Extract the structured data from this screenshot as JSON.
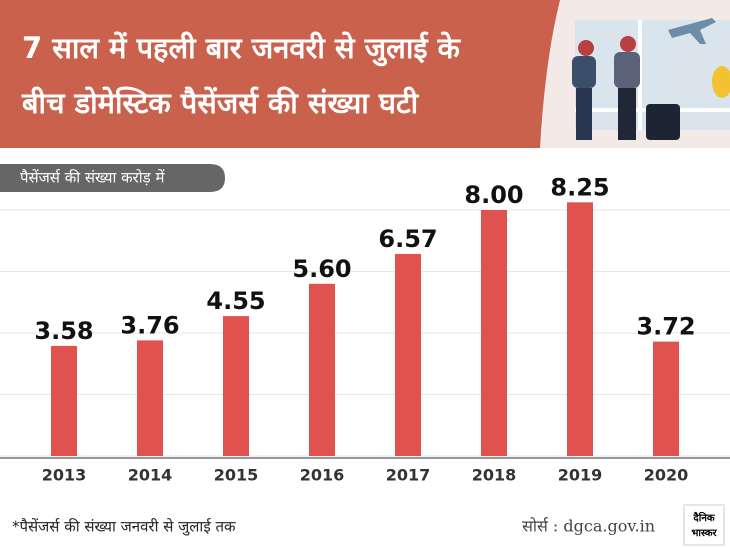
{
  "header": {
    "title_lines": [
      "7 साल में पहली बार जनवरी से जुलाई के",
      "बीच डोमेस्टिक पैसेंजर्स की संख्या घटी"
    ]
  },
  "chart_data": {
    "type": "bar",
    "subtitle": "पैसेंजर्स की संख्या करोड़ में",
    "categories": [
      "2013",
      "2014",
      "2015",
      "2016",
      "2017",
      "2018",
      "2019",
      "2020"
    ],
    "values": [
      3.58,
      3.76,
      4.55,
      5.6,
      6.57,
      8.0,
      8.25,
      3.72
    ],
    "value_labels": [
      "3.58",
      "3.76",
      "4.55",
      "5.60",
      "6.57",
      "8.00",
      "8.25",
      "3.72"
    ],
    "color": "#e0524e",
    "ylim": [
      0,
      8
    ],
    "yticks": [
      0,
      2,
      4,
      6,
      8
    ],
    "grid": true
  },
  "footer": {
    "note": "*पैसेंजर्स की संख्या जनवरी से जुलाई तक",
    "source": "सोर्स : dgca.gov.in",
    "logo": [
      "दैनिक",
      "भास्कर"
    ]
  }
}
